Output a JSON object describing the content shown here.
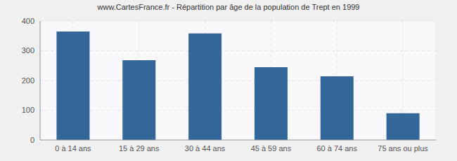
{
  "chart_data": {
    "type": "bar",
    "title": "www.CartesFrance.fr - Répartition par âge de la population de Trept en 1999",
    "categories": [
      "0 à 14 ans",
      "15 à 29 ans",
      "30 à 44 ans",
      "45 à 59 ans",
      "60 à 74 ans",
      "75 ans ou plus"
    ],
    "values": [
      365,
      268,
      358,
      245,
      214,
      90
    ],
    "color": "#336699",
    "ylim": [
      0,
      400
    ],
    "yticks": [
      0,
      100,
      200,
      300,
      400
    ],
    "grid": true
  }
}
